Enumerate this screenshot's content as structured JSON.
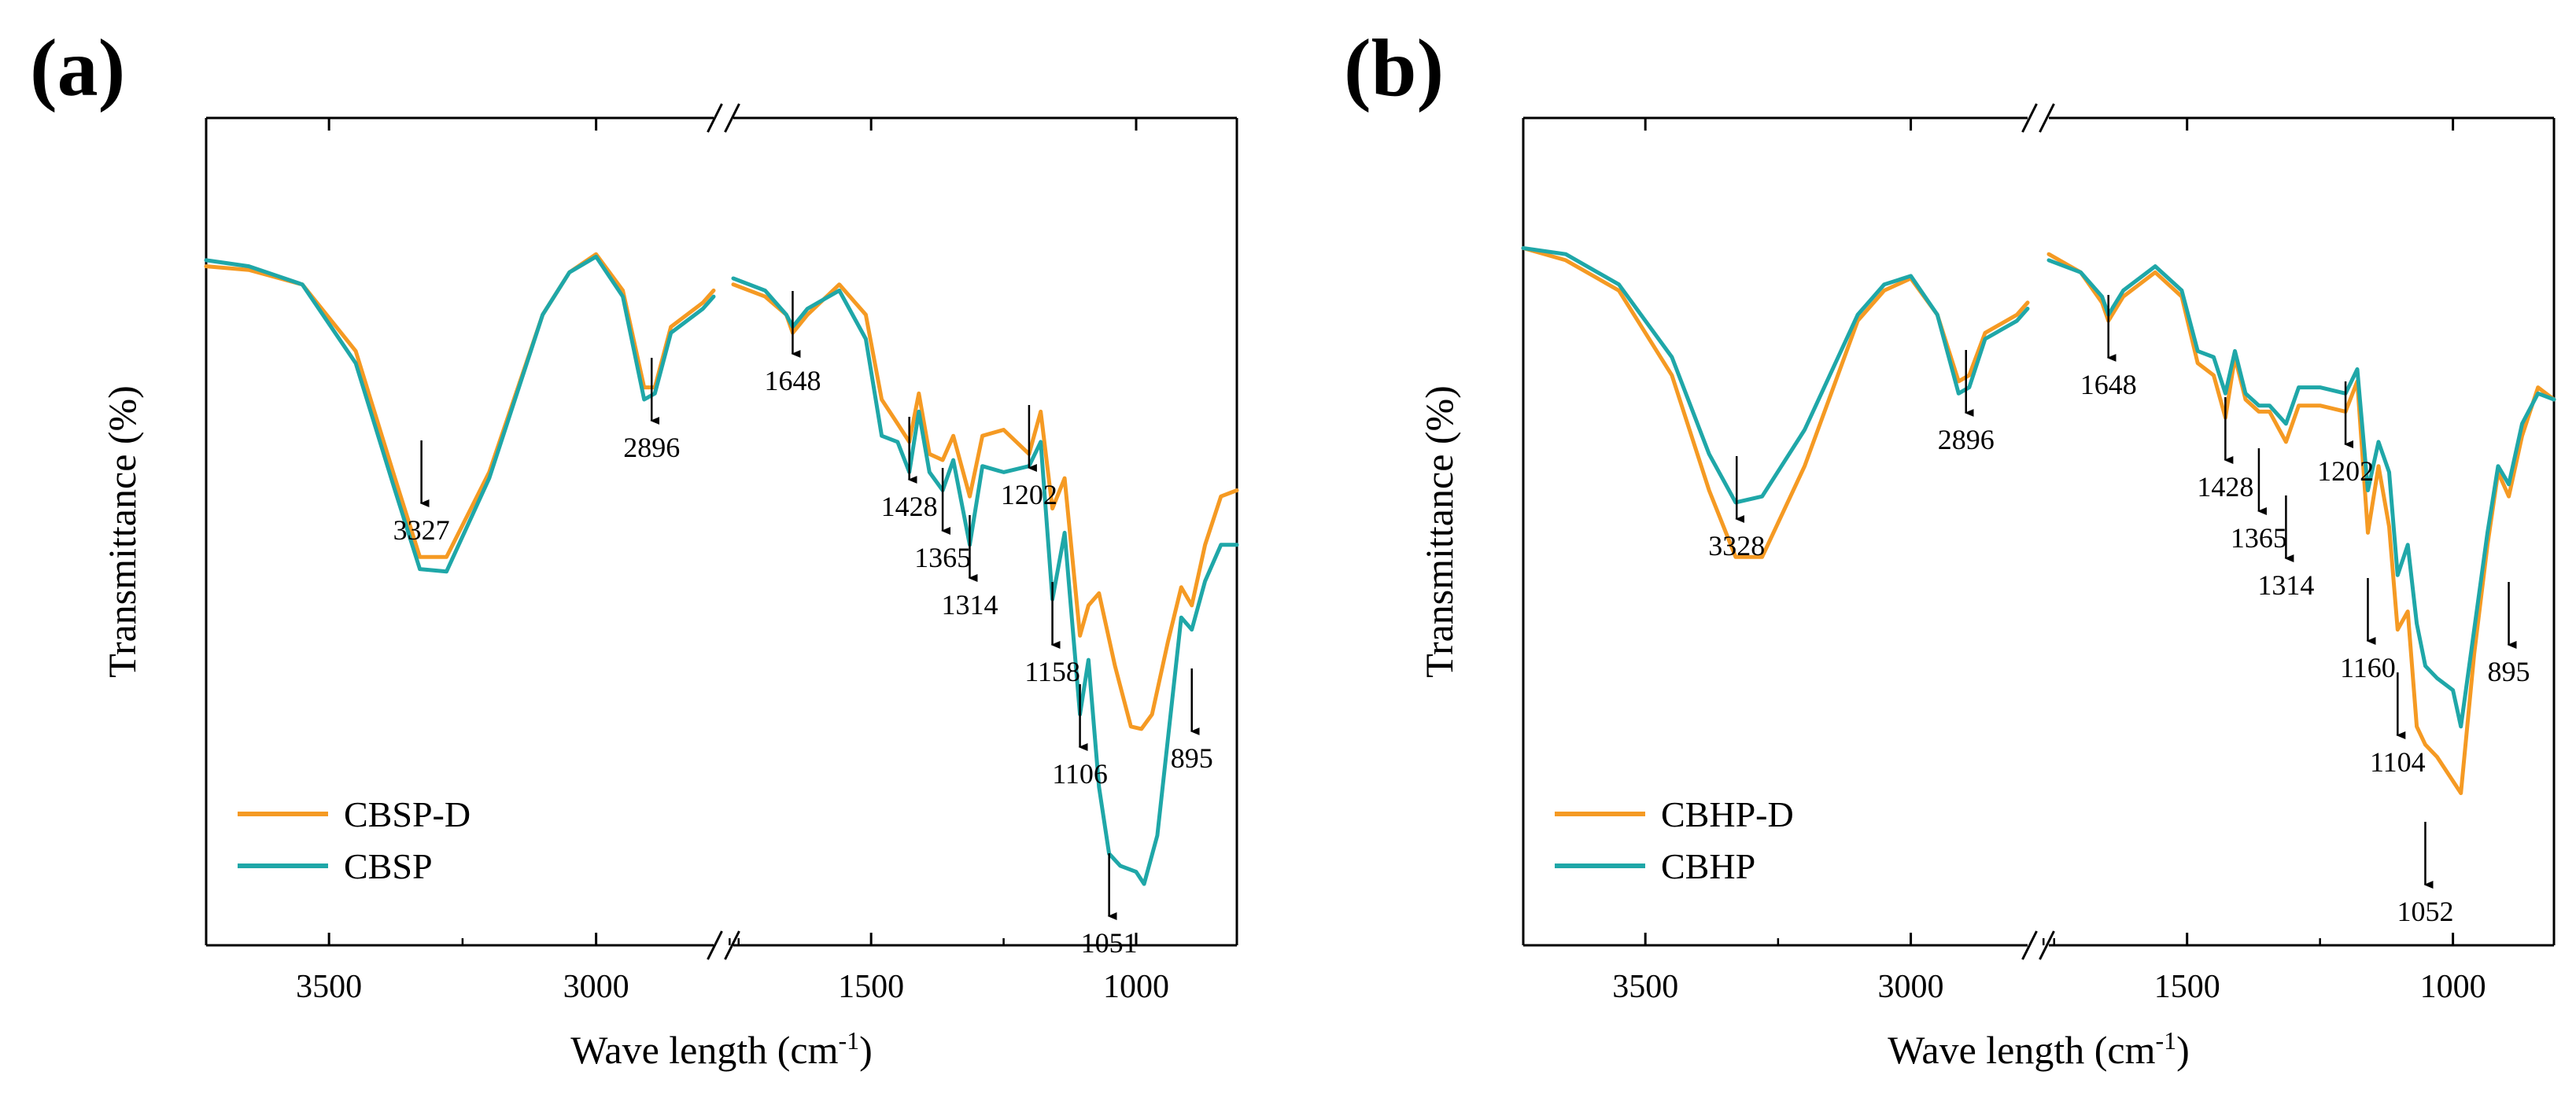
{
  "colors": {
    "orange": "#F59A23",
    "teal": "#1FA7A8",
    "axis": "#000000"
  },
  "chart_data": [
    {
      "panel": "(a)",
      "type": "line",
      "xlabel": "Wave length (cm",
      "xlabel_sup": "-1",
      "xlabel_suffix": ")",
      "ylabel": "Transmittance (%)",
      "x_range_left": [
        3730,
        2780
      ],
      "x_range_right": [
        1760,
        810
      ],
      "axis_break": "//",
      "xticks": [
        "3500",
        "3000",
        "1500",
        "1000"
      ],
      "xtick_values": [
        3500,
        3000,
        1500,
        1000
      ],
      "legend_position": "bottom-left",
      "series": [
        {
          "name": "CBSP-D",
          "color": "#F59A23",
          "points": [
            [
              3730,
              0.9
            ],
            [
              3650,
              0.93
            ],
            [
              3550,
              1.05
            ],
            [
              3450,
              1.6
            ],
            [
              3380,
              2.6
            ],
            [
              3330,
              3.3
            ],
            [
              3280,
              3.3
            ],
            [
              3200,
              2.6
            ],
            [
              3100,
              1.3
            ],
            [
              3050,
              0.95
            ],
            [
              3000,
              0.8
            ],
            [
              2950,
              1.1
            ],
            [
              2910,
              1.9
            ],
            [
              2890,
              1.9
            ],
            [
              2860,
              1.4
            ],
            [
              2800,
              1.2
            ],
            [
              2780,
              1.1
            ],
            [
              1760,
              1.05
            ],
            [
              1700,
              1.15
            ],
            [
              1660,
              1.3
            ],
            [
              1648,
              1.45
            ],
            [
              1620,
              1.3
            ],
            [
              1560,
              1.05
            ],
            [
              1510,
              1.3
            ],
            [
              1480,
              2.0
            ],
            [
              1450,
              2.2
            ],
            [
              1428,
              2.35
            ],
            [
              1410,
              1.95
            ],
            [
              1390,
              2.45
            ],
            [
              1365,
              2.5
            ],
            [
              1345,
              2.3
            ],
            [
              1314,
              2.8
            ],
            [
              1290,
              2.3
            ],
            [
              1250,
              2.25
            ],
            [
              1202,
              2.45
            ],
            [
              1180,
              2.1
            ],
            [
              1158,
              2.9
            ],
            [
              1135,
              2.65
            ],
            [
              1106,
              3.95
            ],
            [
              1090,
              3.7
            ],
            [
              1070,
              3.6
            ],
            [
              1040,
              4.2
            ],
            [
              1010,
              4.7
            ],
            [
              990,
              4.72
            ],
            [
              970,
              4.6
            ],
            [
              940,
              4.0
            ],
            [
              915,
              3.55
            ],
            [
              895,
              3.7
            ],
            [
              870,
              3.2
            ],
            [
              840,
              2.8
            ],
            [
              810,
              2.75
            ]
          ]
        },
        {
          "name": "CBSP",
          "color": "#1FA7A8",
          "points": [
            [
              3730,
              0.85
            ],
            [
              3650,
              0.9
            ],
            [
              3550,
              1.05
            ],
            [
              3450,
              1.7
            ],
            [
              3380,
              2.7
            ],
            [
              3330,
              3.4
            ],
            [
              3280,
              3.42
            ],
            [
              3200,
              2.65
            ],
            [
              3100,
              1.3
            ],
            [
              3050,
              0.95
            ],
            [
              3000,
              0.82
            ],
            [
              2950,
              1.15
            ],
            [
              2910,
              2.0
            ],
            [
              2890,
              1.95
            ],
            [
              2860,
              1.45
            ],
            [
              2800,
              1.25
            ],
            [
              2780,
              1.15
            ],
            [
              1760,
              1.0
            ],
            [
              1700,
              1.1
            ],
            [
              1660,
              1.3
            ],
            [
              1648,
              1.4
            ],
            [
              1620,
              1.25
            ],
            [
              1560,
              1.1
            ],
            [
              1510,
              1.5
            ],
            [
              1480,
              2.3
            ],
            [
              1450,
              2.35
            ],
            [
              1428,
              2.6
            ],
            [
              1410,
              2.1
            ],
            [
              1390,
              2.6
            ],
            [
              1365,
              2.75
            ],
            [
              1345,
              2.5
            ],
            [
              1314,
              3.2
            ],
            [
              1290,
              2.55
            ],
            [
              1250,
              2.6
            ],
            [
              1202,
              2.55
            ],
            [
              1180,
              2.35
            ],
            [
              1158,
              3.65
            ],
            [
              1135,
              3.1
            ],
            [
              1106,
              4.6
            ],
            [
              1090,
              4.15
            ],
            [
              1070,
              5.2
            ],
            [
              1051,
              5.75
            ],
            [
              1030,
              5.85
            ],
            [
              1000,
              5.9
            ],
            [
              985,
              6.0
            ],
            [
              960,
              5.6
            ],
            [
              935,
              4.6
            ],
            [
              915,
              3.8
            ],
            [
              895,
              3.9
            ],
            [
              870,
              3.5
            ],
            [
              840,
              3.2
            ],
            [
              810,
              3.2
            ]
          ]
        }
      ],
      "annotations": [
        {
          "label": "3327",
          "x": 3327
        },
        {
          "label": "2896",
          "x": 2896
        },
        {
          "label": "1648",
          "x": 1648
        },
        {
          "label": "1428",
          "x": 1428
        },
        {
          "label": "1365",
          "x": 1365
        },
        {
          "label": "1314",
          "x": 1314
        },
        {
          "label": "1202",
          "x": 1202
        },
        {
          "label": "1158",
          "x": 1158
        },
        {
          "label": "1106",
          "x": 1106
        },
        {
          "label": "1051",
          "x": 1051
        },
        {
          "label": "895",
          "x": 895
        }
      ]
    },
    {
      "panel": "(b)",
      "type": "line",
      "xlabel": "Wave length (cm",
      "xlabel_sup": "-1",
      "xlabel_suffix": ")",
      "ylabel": "Transmittance (%)",
      "x_range_left": [
        3730,
        2780
      ],
      "x_range_right": [
        1760,
        810
      ],
      "axis_break": "//",
      "xticks": [
        "3500",
        "3000",
        "1500",
        "1000"
      ],
      "xtick_values": [
        3500,
        3000,
        1500,
        1000
      ],
      "legend_position": "bottom-left",
      "series": [
        {
          "name": "CBHP-D",
          "color": "#F59A23",
          "points": [
            [
              3730,
              0.75
            ],
            [
              3650,
              0.85
            ],
            [
              3550,
              1.1
            ],
            [
              3450,
              1.8
            ],
            [
              3380,
              2.75
            ],
            [
              3330,
              3.3
            ],
            [
              3280,
              3.3
            ],
            [
              3200,
              2.55
            ],
            [
              3100,
              1.35
            ],
            [
              3050,
              1.1
            ],
            [
              3000,
              1.0
            ],
            [
              2950,
              1.3
            ],
            [
              2910,
              1.85
            ],
            [
              2890,
              1.8
            ],
            [
              2860,
              1.45
            ],
            [
              2800,
              1.3
            ],
            [
              2780,
              1.2
            ],
            [
              1760,
              0.8
            ],
            [
              1700,
              0.95
            ],
            [
              1660,
              1.2
            ],
            [
              1648,
              1.35
            ],
            [
              1620,
              1.15
            ],
            [
              1560,
              0.95
            ],
            [
              1510,
              1.15
            ],
            [
              1480,
              1.7
            ],
            [
              1450,
              1.8
            ],
            [
              1428,
              2.15
            ],
            [
              1410,
              1.65
            ],
            [
              1390,
              2.0
            ],
            [
              1365,
              2.1
            ],
            [
              1345,
              2.1
            ],
            [
              1314,
              2.35
            ],
            [
              1290,
              2.05
            ],
            [
              1250,
              2.05
            ],
            [
              1202,
              2.1
            ],
            [
              1180,
              1.85
            ],
            [
              1160,
              3.1
            ],
            [
              1140,
              2.55
            ],
            [
              1120,
              3.05
            ],
            [
              1104,
              3.9
            ],
            [
              1085,
              3.75
            ],
            [
              1068,
              4.7
            ],
            [
              1052,
              4.85
            ],
            [
              1030,
              4.95
            ],
            [
              1000,
              5.15
            ],
            [
              985,
              5.25
            ],
            [
              960,
              4.1
            ],
            [
              935,
              3.2
            ],
            [
              915,
              2.6
            ],
            [
              895,
              2.8
            ],
            [
              870,
              2.3
            ],
            [
              840,
              1.9
            ],
            [
              810,
              2.0
            ]
          ]
        },
        {
          "name": "CBHP",
          "color": "#1FA7A8",
          "points": [
            [
              3730,
              0.75
            ],
            [
              3650,
              0.8
            ],
            [
              3550,
              1.05
            ],
            [
              3450,
              1.65
            ],
            [
              3380,
              2.45
            ],
            [
              3330,
              2.85
            ],
            [
              3280,
              2.8
            ],
            [
              3200,
              2.25
            ],
            [
              3100,
              1.3
            ],
            [
              3050,
              1.05
            ],
            [
              3000,
              0.98
            ],
            [
              2950,
              1.3
            ],
            [
              2910,
              1.95
            ],
            [
              2890,
              1.9
            ],
            [
              2860,
              1.5
            ],
            [
              2800,
              1.35
            ],
            [
              2780,
              1.25
            ],
            [
              1760,
              0.85
            ],
            [
              1700,
              0.95
            ],
            [
              1660,
              1.15
            ],
            [
              1648,
              1.3
            ],
            [
              1620,
              1.1
            ],
            [
              1560,
              0.9
            ],
            [
              1510,
              1.1
            ],
            [
              1480,
              1.6
            ],
            [
              1450,
              1.65
            ],
            [
              1428,
              1.95
            ],
            [
              1410,
              1.6
            ],
            [
              1390,
              1.95
            ],
            [
              1365,
              2.05
            ],
            [
              1345,
              2.05
            ],
            [
              1314,
              2.2
            ],
            [
              1290,
              1.9
            ],
            [
              1250,
              1.9
            ],
            [
              1202,
              1.95
            ],
            [
              1180,
              1.75
            ],
            [
              1160,
              2.75
            ],
            [
              1140,
              2.35
            ],
            [
              1120,
              2.6
            ],
            [
              1104,
              3.45
            ],
            [
              1085,
              3.2
            ],
            [
              1068,
              3.85
            ],
            [
              1052,
              4.2
            ],
            [
              1030,
              4.3
            ],
            [
              1000,
              4.4
            ],
            [
              985,
              4.7
            ],
            [
              960,
              3.9
            ],
            [
              935,
              3.1
            ],
            [
              915,
              2.55
            ],
            [
              895,
              2.7
            ],
            [
              870,
              2.2
            ],
            [
              840,
              1.95
            ],
            [
              810,
              2.0
            ]
          ]
        }
      ],
      "annotations": [
        {
          "label": "3328",
          "x": 3328
        },
        {
          "label": "2896",
          "x": 2896
        },
        {
          "label": "1648",
          "x": 1648
        },
        {
          "label": "1428",
          "x": 1428
        },
        {
          "label": "1365",
          "x": 1365
        },
        {
          "label": "1314",
          "x": 1314
        },
        {
          "label": "1202",
          "x": 1202
        },
        {
          "label": "1160",
          "x": 1160
        },
        {
          "label": "1104",
          "x": 1104
        },
        {
          "label": "1052",
          "x": 1052
        },
        {
          "label": "895",
          "x": 895
        }
      ]
    }
  ]
}
